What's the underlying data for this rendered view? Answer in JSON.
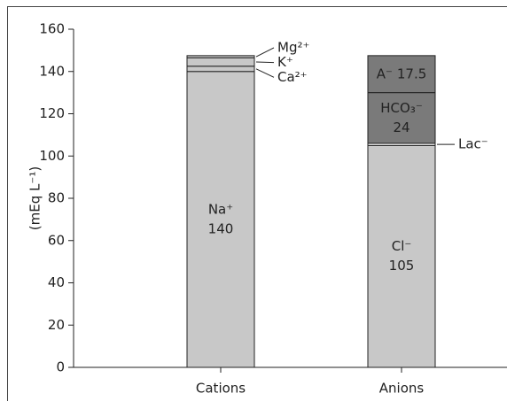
{
  "chart_data": {
    "type": "stacked_bar",
    "y_label": "(mEq L⁻¹)",
    "categories": [
      "Cations",
      "Anions"
    ],
    "series": [
      {
        "name": "Na⁺",
        "color": "#c8c8c8",
        "values": [
          140,
          null
        ]
      },
      {
        "name": "Ca²⁺",
        "color": "#c8c8c8",
        "values": [
          2.5,
          null
        ]
      },
      {
        "name": "K⁺",
        "color": "#c8c8c8",
        "values": [
          4,
          null
        ]
      },
      {
        "name": "Mg²⁺",
        "color": "#c8c8c8",
        "values": [
          1,
          null
        ]
      },
      {
        "name": "Cl⁻",
        "color": "#c8c8c8",
        "values": [
          null,
          105
        ]
      },
      {
        "name": "Lac⁻",
        "color": "#ffffff",
        "values": [
          null,
          1
        ]
      },
      {
        "name": "HCO₃⁻",
        "color": "#7a7a7a",
        "values": [
          null,
          24
        ]
      },
      {
        "name": "A⁻",
        "color": "#7a7a7a",
        "values": [
          null,
          17.5
        ]
      }
    ],
    "ylim": [
      0,
      160
    ],
    "yticks": [
      0,
      20,
      40,
      60,
      80,
      100,
      120,
      140,
      160
    ]
  }
}
